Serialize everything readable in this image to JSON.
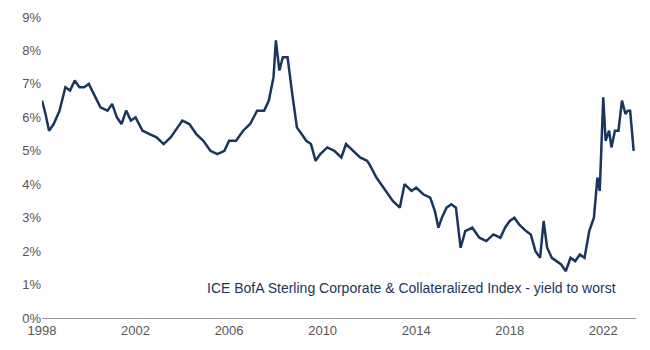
{
  "chart_data": {
    "type": "line",
    "annotation": "ICE BofA Sterling Corporate & Collateralized Index - yield to worst",
    "color": "#1b365d",
    "grid": false,
    "x": [
      1998.0,
      1998.15,
      1998.3,
      1998.5,
      1998.75,
      1999.0,
      1999.2,
      1999.4,
      1999.6,
      1999.8,
      2000.0,
      2000.2,
      2000.5,
      2000.8,
      2001.0,
      2001.2,
      2001.4,
      2001.6,
      2001.8,
      2002.0,
      2002.3,
      2002.6,
      2002.9,
      2003.2,
      2003.5,
      2003.8,
      2004.0,
      2004.3,
      2004.6,
      2004.9,
      2005.2,
      2005.5,
      2005.8,
      2006.0,
      2006.3,
      2006.6,
      2006.9,
      2007.2,
      2007.5,
      2007.7,
      2007.9,
      2008.0,
      2008.15,
      2008.3,
      2008.5,
      2008.7,
      2008.9,
      2009.1,
      2009.3,
      2009.5,
      2009.7,
      2009.9,
      2010.2,
      2010.5,
      2010.8,
      2011.0,
      2011.3,
      2011.6,
      2011.9,
      2012.0,
      2012.3,
      2012.6,
      2012.8,
      2013.0,
      2013.3,
      2013.5,
      2013.8,
      2014.0,
      2014.3,
      2014.6,
      2014.8,
      2014.95,
      2015.1,
      2015.3,
      2015.5,
      2015.7,
      2015.9,
      2016.1,
      2016.4,
      2016.7,
      2017.0,
      2017.3,
      2017.6,
      2017.8,
      2018.0,
      2018.2,
      2018.4,
      2018.7,
      2018.9,
      2019.1,
      2019.3,
      2019.45,
      2019.6,
      2019.8,
      2020.0,
      2020.2,
      2020.4,
      2020.6,
      2020.8,
      2021.0,
      2021.2,
      2021.4,
      2021.6,
      2021.75,
      2021.85,
      2022.0,
      2022.1,
      2022.25,
      2022.35,
      2022.5,
      2022.65,
      2022.8,
      2022.95,
      2023.05,
      2023.15,
      2023.3
    ],
    "values": [
      6.5,
      6.1,
      5.6,
      5.8,
      6.2,
      6.9,
      6.8,
      7.1,
      6.9,
      6.9,
      7.0,
      6.7,
      6.3,
      6.2,
      6.4,
      6.0,
      5.8,
      6.2,
      5.9,
      6.0,
      5.6,
      5.5,
      5.4,
      5.2,
      5.4,
      5.7,
      5.9,
      5.8,
      5.5,
      5.3,
      5.0,
      4.9,
      5.0,
      5.3,
      5.3,
      5.6,
      5.8,
      6.2,
      6.2,
      6.5,
      7.2,
      8.3,
      7.4,
      7.8,
      7.8,
      6.7,
      5.7,
      5.5,
      5.3,
      5.2,
      4.7,
      4.9,
      5.1,
      5.0,
      4.8,
      5.2,
      5.0,
      4.8,
      4.7,
      4.6,
      4.2,
      3.9,
      3.7,
      3.5,
      3.3,
      4.0,
      3.8,
      3.9,
      3.7,
      3.6,
      3.2,
      2.7,
      3.0,
      3.3,
      3.4,
      3.3,
      2.1,
      2.6,
      2.7,
      2.4,
      2.3,
      2.5,
      2.4,
      2.7,
      2.9,
      3.0,
      2.8,
      2.6,
      2.5,
      2.0,
      1.8,
      2.9,
      2.1,
      1.8,
      1.7,
      1.6,
      1.4,
      1.8,
      1.7,
      1.9,
      1.8,
      2.6,
      3.0,
      4.2,
      3.8,
      6.6,
      5.3,
      5.6,
      5.1,
      5.6,
      5.6,
      6.5,
      6.1,
      6.2,
      6.2,
      5.0
    ],
    "xlim": [
      1998,
      2023.4
    ],
    "xticks": [
      1998,
      2002,
      2006,
      2010,
      2014,
      2018,
      2022
    ],
    "ylim": [
      0,
      9
    ],
    "yticks": [
      {
        "value": 0,
        "label": "0%"
      },
      {
        "value": 1,
        "label": "1%"
      },
      {
        "value": 2,
        "label": "2%"
      },
      {
        "value": 3,
        "label": "3%"
      },
      {
        "value": 4,
        "label": "4%"
      },
      {
        "value": 5,
        "label": "5%"
      },
      {
        "value": 6,
        "label": "6%"
      },
      {
        "value": 7,
        "label": "7%"
      },
      {
        "value": 8,
        "label": "8%"
      },
      {
        "value": 9,
        "label": "9%"
      }
    ]
  }
}
